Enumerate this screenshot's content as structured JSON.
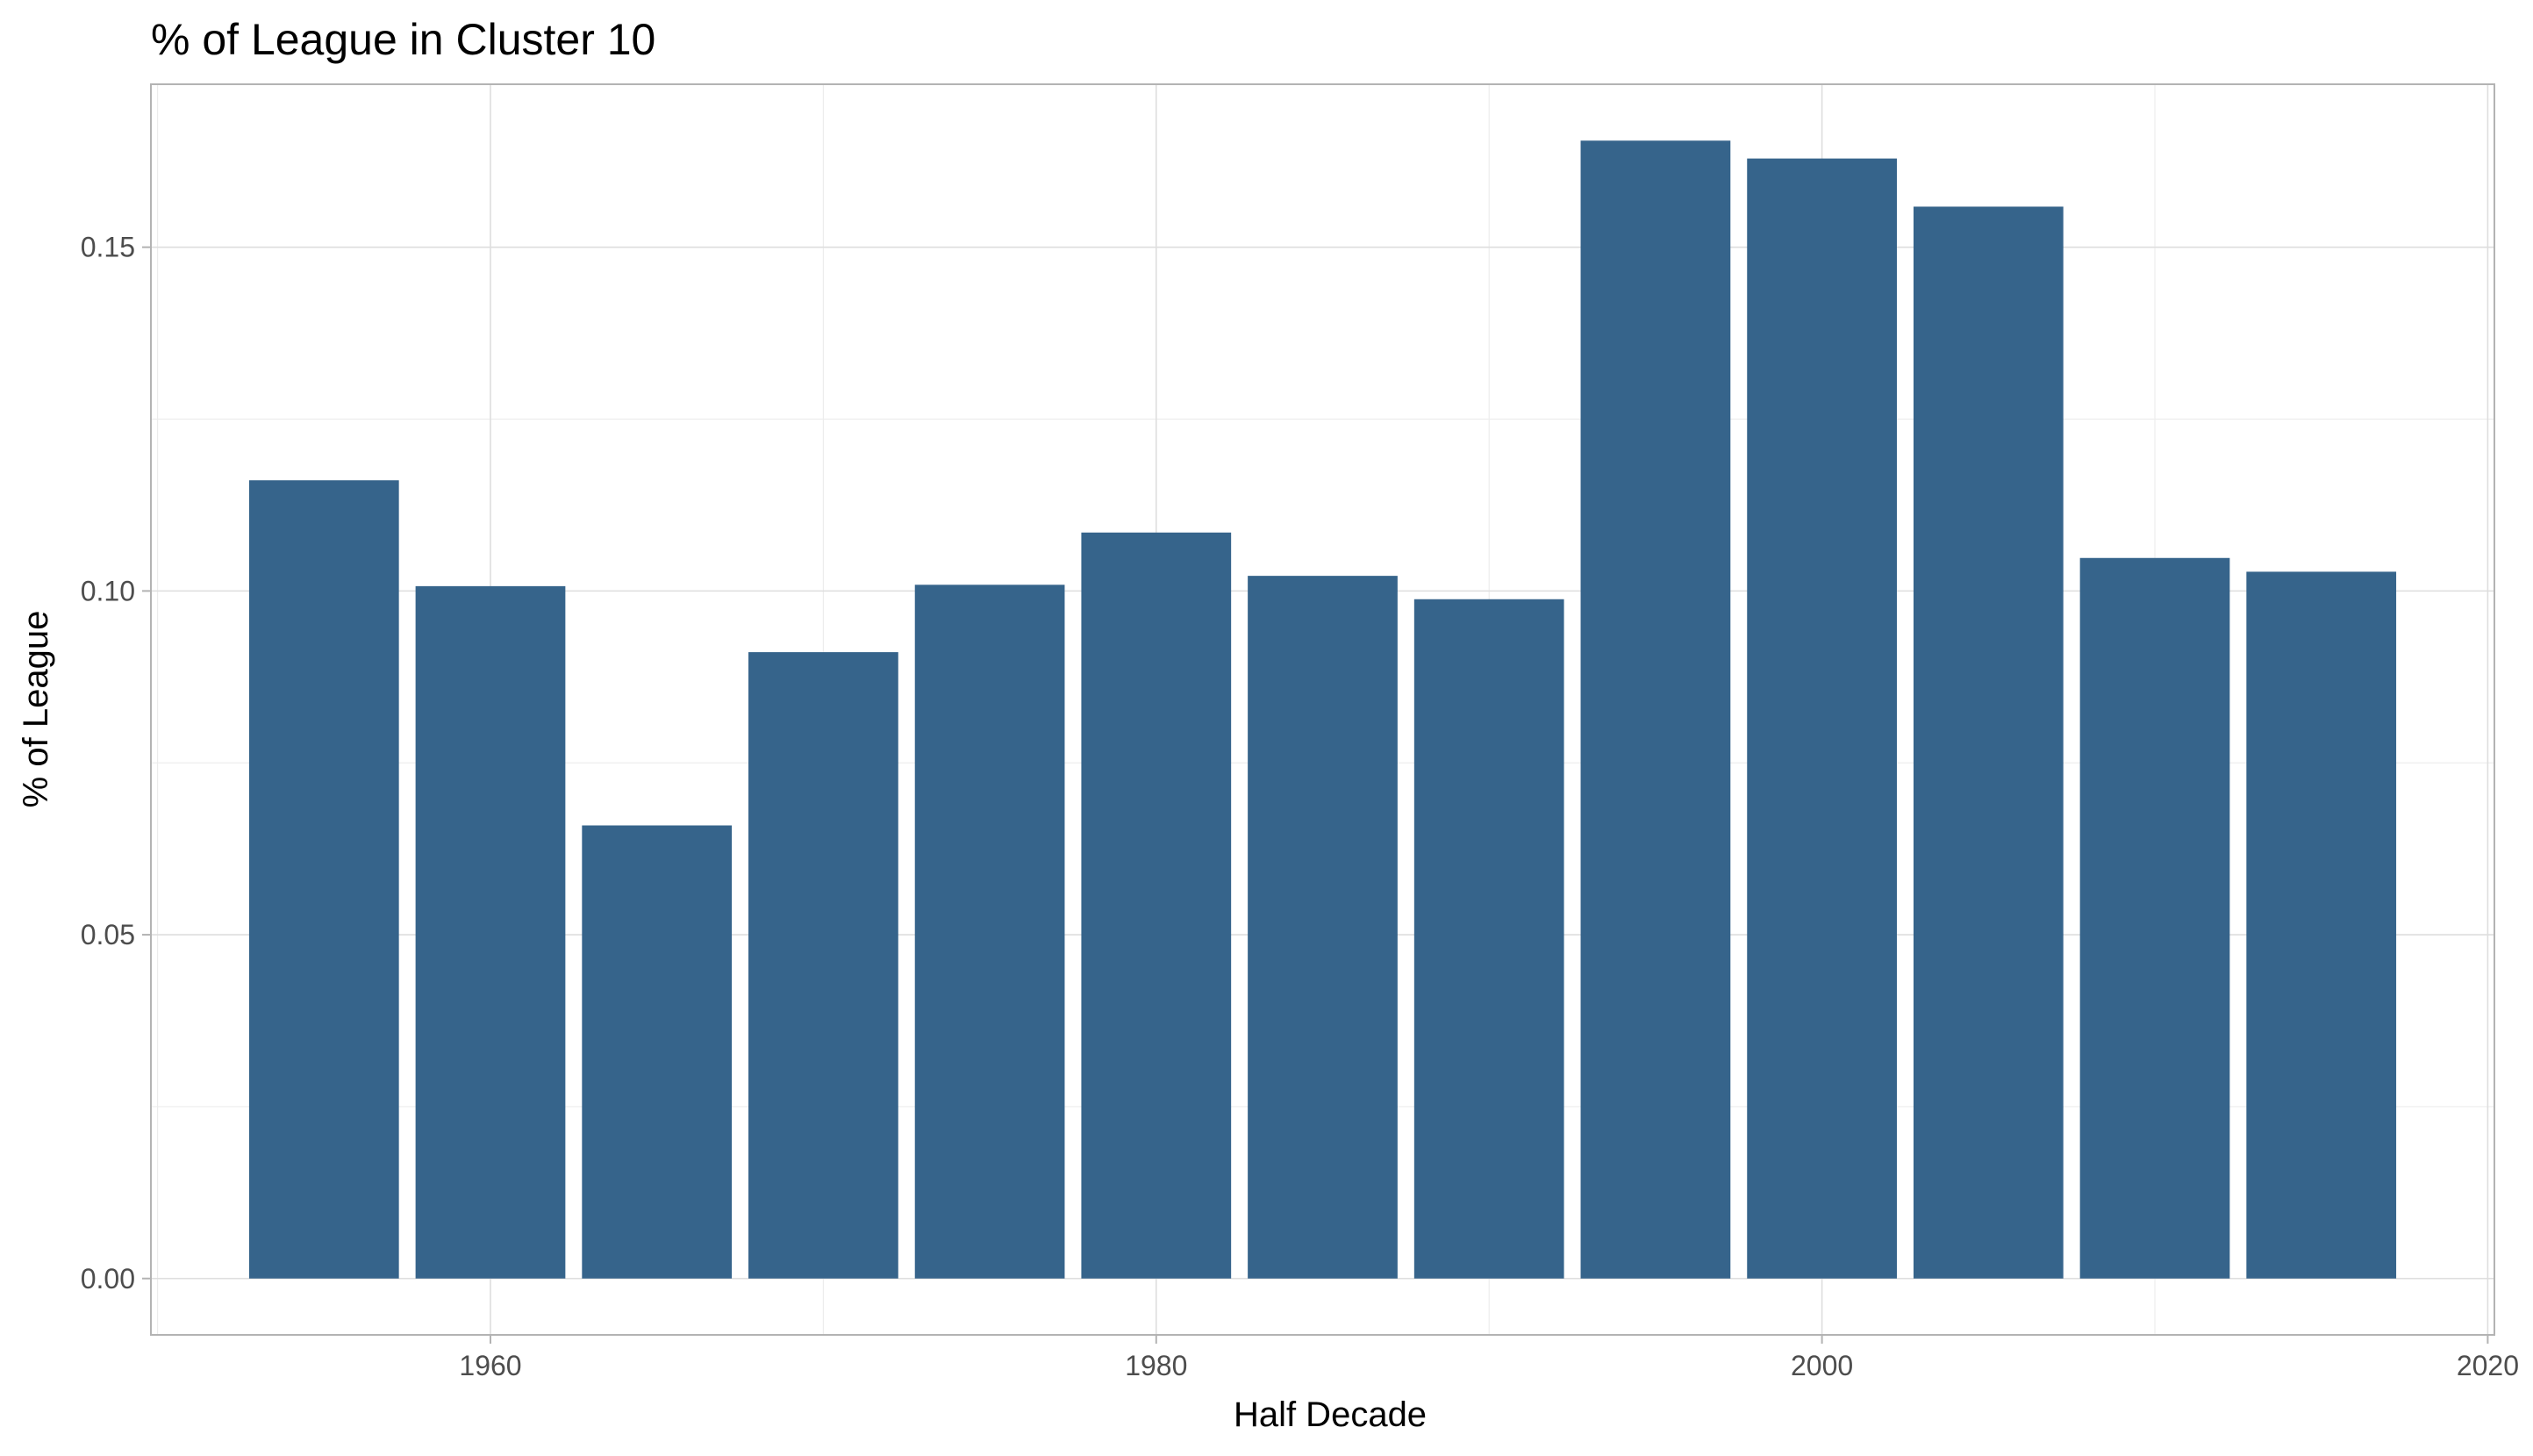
{
  "chart_data": {
    "type": "bar",
    "title": "% of League in Cluster 10",
    "xlabel": "Half Decade",
    "ylabel": "% of League",
    "x": [
      1955,
      1960,
      1965,
      1970,
      1975,
      1980,
      1985,
      1990,
      1995,
      2000,
      2005,
      2010,
      2015
    ],
    "values": [
      0.1161,
      0.1007,
      0.0659,
      0.0911,
      0.1009,
      0.1085,
      0.1022,
      0.0988,
      0.1655,
      0.1629,
      0.1559,
      0.1048,
      0.1028
    ],
    "bar_width": 4.5,
    "xlim": [
      1949.8,
      2020.2
    ],
    "ylim": [
      -0.0082,
      0.1737
    ],
    "x_ticks": [
      1960,
      1980,
      2000,
      2020
    ],
    "x_tick_labels": [
      "1960",
      "1980",
      "2000",
      "2020"
    ],
    "y_ticks": [
      0.0,
      0.05,
      0.1,
      0.15
    ],
    "y_tick_labels": [
      "0.00",
      "0.05",
      "0.10",
      "0.15"
    ],
    "bar_color": "#36648b",
    "grid": true,
    "legend": "none"
  }
}
